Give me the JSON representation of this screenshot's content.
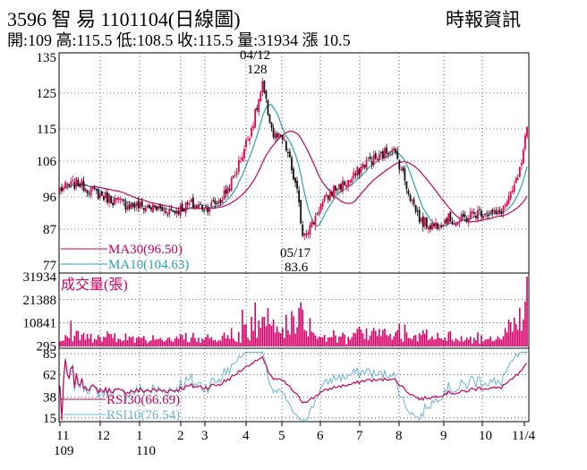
{
  "header": {
    "title": "3596  智  易 1101104(日線圖)",
    "source": "時報資訊",
    "quote": "開:109 高:115.5 低:108.5 收:115.5 量:31934 漲 10.5"
  },
  "colors": {
    "up": "#e8004a",
    "down": "#111111",
    "ma30": "#c8005a",
    "ma10": "#2aa0b8",
    "volume": "#d8006a",
    "rsi30": "#c8005a",
    "rsi10": "#6ab4d8",
    "frame": "#000000",
    "grid": "#000000"
  },
  "chart_data": [
    {
      "type": "candlestick",
      "panel": "price",
      "ylim": [
        77,
        135
      ],
      "y_ticks": [
        "135",
        "125",
        "115",
        "106",
        "96",
        "87",
        "77"
      ],
      "y_tick_values": [
        135,
        125,
        115,
        106,
        96,
        87,
        77
      ],
      "months": [
        "11",
        "12",
        "1",
        "2",
        "3",
        "4",
        "5",
        "6",
        "7",
        "8",
        "9",
        "10",
        "11/4"
      ],
      "year_labels": [
        "109",
        "110"
      ],
      "annotations": [
        {
          "date": "04/12",
          "value": "128",
          "date_label": "04/12",
          "value_label": "128"
        },
        {
          "date": "05/17",
          "value": "83.6",
          "date_label": "05/17",
          "value_label": "83.6"
        }
      ],
      "legend": [
        {
          "label": "MA30(96.50)",
          "color": "#c8005a"
        },
        {
          "label": "MA10(104.63)",
          "color": "#2aa0b8"
        }
      ],
      "keypoints": [
        [
          0,
          98
        ],
        [
          10,
          100
        ],
        [
          20,
          97
        ],
        [
          35,
          94
        ],
        [
          50,
          93
        ],
        [
          62,
          92
        ],
        [
          72,
          94
        ],
        [
          80,
          93
        ],
        [
          88,
          95
        ],
        [
          95,
          101
        ],
        [
          100,
          108
        ],
        [
          106,
          117
        ],
        [
          111,
          127
        ],
        [
          113,
          122
        ],
        [
          117,
          113
        ],
        [
          122,
          112
        ],
        [
          125,
          108
        ],
        [
          130,
          97
        ],
        [
          133,
          86
        ],
        [
          138,
          88
        ],
        [
          142,
          93
        ],
        [
          150,
          98
        ],
        [
          160,
          101
        ],
        [
          168,
          106
        ],
        [
          175,
          107
        ],
        [
          182,
          110
        ],
        [
          187,
          104
        ],
        [
          192,
          96
        ],
        [
          198,
          89
        ],
        [
          205,
          88
        ],
        [
          212,
          90
        ],
        [
          218,
          89
        ],
        [
          225,
          91
        ],
        [
          232,
          92
        ],
        [
          240,
          91
        ],
        [
          247,
          96
        ],
        [
          252,
          103
        ],
        [
          254,
          108
        ],
        [
          256,
          115.5
        ]
      ]
    },
    {
      "type": "bar",
      "panel": "volume",
      "title": "成交量(張)",
      "ylim": [
        0,
        31934
      ],
      "y_ticks": [
        "31934",
        "21388",
        "10841",
        "295"
      ],
      "y_tick_values": [
        31934,
        21388,
        10841,
        295
      ],
      "last_value": 31934
    },
    {
      "type": "line",
      "panel": "rsi",
      "ylim": [
        12,
        87
      ],
      "y_ticks": [
        "85",
        "62",
        "38",
        "15"
      ],
      "y_tick_values": [
        85,
        62,
        38,
        15
      ],
      "legend": [
        {
          "label": "RSI30(66.69)",
          "color": "#c8005a"
        },
        {
          "label": "RSI10(76.54)",
          "color": "#6ab4d8"
        }
      ]
    }
  ]
}
